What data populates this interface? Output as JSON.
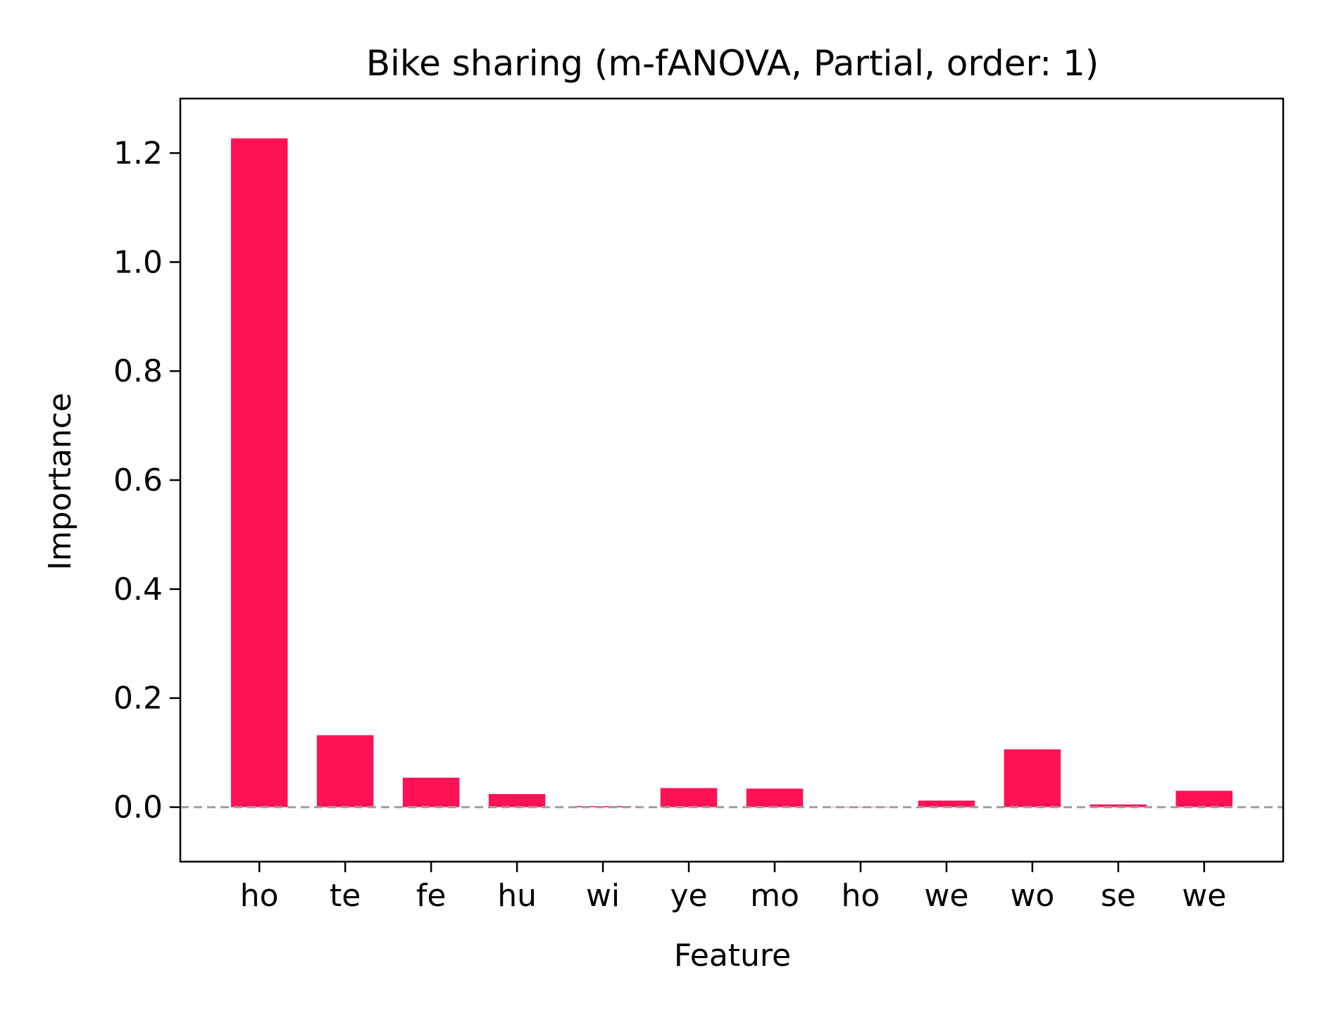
{
  "chart_data": {
    "type": "bar",
    "title": "Bike sharing (m-fANOVA, Partial, order: 1)",
    "xlabel": "Feature",
    "ylabel": "Importance",
    "categories": [
      "ho",
      "te",
      "fe",
      "hu",
      "wi",
      "ye",
      "mo",
      "ho",
      "we",
      "wo",
      "se",
      "we"
    ],
    "values": [
      1.227,
      0.132,
      0.054,
      0.024,
      0.002,
      0.035,
      0.034,
      0.0,
      0.012,
      0.106,
      0.005,
      0.03
    ],
    "ylim": [
      -0.1,
      1.3
    ],
    "yticks": [
      0.0,
      0.2,
      0.4,
      0.6,
      0.8,
      1.0,
      1.2
    ],
    "ytick_labels": [
      "0.0",
      "0.2",
      "0.4",
      "0.6",
      "0.8",
      "1.0",
      "1.2"
    ],
    "baseline": 0.0,
    "grid": false,
    "colors": {
      "bar": "#ff1155",
      "baseline": "#a0a0a0",
      "axes": "#000000"
    }
  }
}
